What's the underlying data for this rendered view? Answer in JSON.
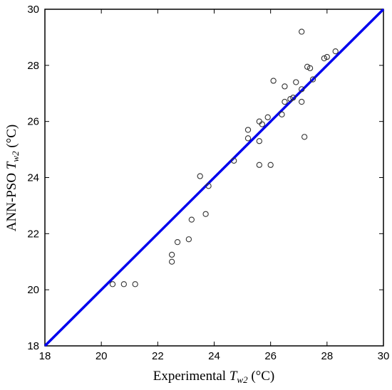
{
  "chart_data": {
    "type": "scatter",
    "title": "",
    "xlabel": {
      "prefix": "Experimental ",
      "var": "T",
      "sub": "w2",
      "unit": " (°C)"
    },
    "ylabel": {
      "prefix": "ANN-PSO ",
      "var": "T",
      "sub": "w2",
      "unit": " (°C)"
    },
    "xlim": [
      18,
      30
    ],
    "ylim": [
      18,
      30
    ],
    "xticks": [
      18,
      20,
      22,
      24,
      26,
      28,
      30
    ],
    "yticks": [
      18,
      20,
      22,
      24,
      26,
      28,
      30
    ],
    "grid": false,
    "reference_line": {
      "from": [
        18,
        18
      ],
      "to": [
        30,
        30
      ],
      "color": "#0000ee"
    },
    "marker": {
      "shape": "circle-open",
      "color": "#333333"
    },
    "points": [
      [
        20.4,
        20.2
      ],
      [
        20.8,
        20.2
      ],
      [
        21.2,
        20.2
      ],
      [
        22.5,
        21.0
      ],
      [
        22.5,
        21.25
      ],
      [
        22.7,
        21.7
      ],
      [
        23.1,
        21.8
      ],
      [
        23.2,
        22.5
      ],
      [
        23.5,
        24.05
      ],
      [
        23.7,
        22.7
      ],
      [
        23.8,
        23.7
      ],
      [
        24.7,
        24.6
      ],
      [
        25.2,
        25.4
      ],
      [
        25.2,
        25.7
      ],
      [
        25.6,
        25.3
      ],
      [
        25.6,
        26.0
      ],
      [
        25.7,
        25.9
      ],
      [
        25.6,
        24.45
      ],
      [
        26.0,
        24.45
      ],
      [
        25.9,
        26.15
      ],
      [
        26.1,
        27.45
      ],
      [
        26.4,
        26.25
      ],
      [
        26.5,
        26.7
      ],
      [
        26.5,
        27.25
      ],
      [
        26.7,
        26.8
      ],
      [
        26.8,
        26.85
      ],
      [
        26.9,
        27.4
      ],
      [
        27.1,
        27.15
      ],
      [
        27.1,
        26.7
      ],
      [
        27.1,
        29.2
      ],
      [
        27.2,
        25.45
      ],
      [
        27.3,
        27.95
      ],
      [
        27.4,
        27.9
      ],
      [
        27.5,
        27.5
      ],
      [
        27.9,
        28.25
      ],
      [
        28.0,
        28.3
      ],
      [
        28.3,
        28.5
      ]
    ]
  }
}
